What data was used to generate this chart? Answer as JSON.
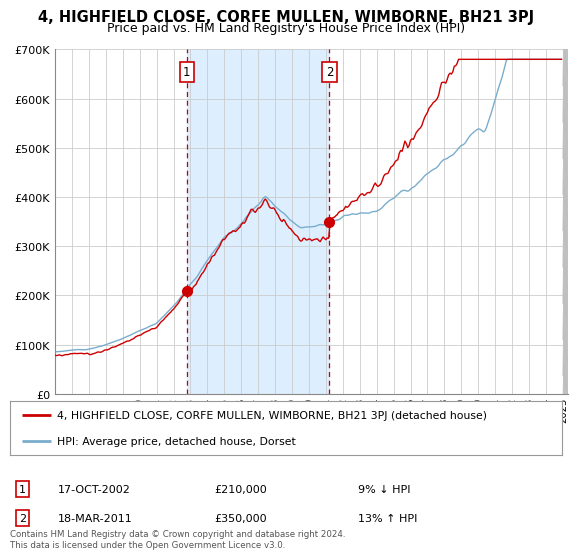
{
  "title": "4, HIGHFIELD CLOSE, CORFE MULLEN, WIMBORNE, BH21 3PJ",
  "subtitle": "Price paid vs. HM Land Registry's House Price Index (HPI)",
  "title_fontsize": 10.5,
  "subtitle_fontsize": 9,
  "ylim": [
    0,
    700000
  ],
  "yticks": [
    0,
    100000,
    200000,
    300000,
    400000,
    500000,
    600000,
    700000
  ],
  "ytick_labels": [
    "£0",
    "£100K",
    "£200K",
    "£300K",
    "£400K",
    "£500K",
    "£600K",
    "£700K"
  ],
  "xlim": [
    1995,
    2025.3
  ],
  "sale1_x": 2002.79,
  "sale1_y": 210000,
  "sale1_date": "17-OCT-2002",
  "sale1_price": "£210,000",
  "sale1_hpi": "9% ↓ HPI",
  "sale2_x": 2011.21,
  "sale2_y": 350000,
  "sale2_date": "18-MAR-2011",
  "sale2_price": "£350,000",
  "sale2_hpi": "13% ↑ HPI",
  "red_line_color": "#cc0000",
  "blue_line_color": "#7aadcc",
  "shade_color": "#ddeeff",
  "grid_color": "#cccccc",
  "bg_color": "#ffffff",
  "legend_label_red": "4, HIGHFIELD CLOSE, CORFE MULLEN, WIMBORNE, BH21 3PJ (detached house)",
  "legend_label_blue": "HPI: Average price, detached house, Dorset",
  "footer_text": "Contains HM Land Registry data © Crown copyright and database right 2024.\nThis data is licensed under the Open Government Licence v3.0.",
  "xtick_years": [
    1995,
    1996,
    1997,
    1998,
    1999,
    2000,
    2001,
    2002,
    2003,
    2004,
    2005,
    2006,
    2007,
    2008,
    2009,
    2010,
    2011,
    2012,
    2013,
    2014,
    2015,
    2016,
    2017,
    2018,
    2019,
    2020,
    2021,
    2022,
    2023,
    2024,
    2025
  ],
  "hatch_color": "#bbbbbb"
}
